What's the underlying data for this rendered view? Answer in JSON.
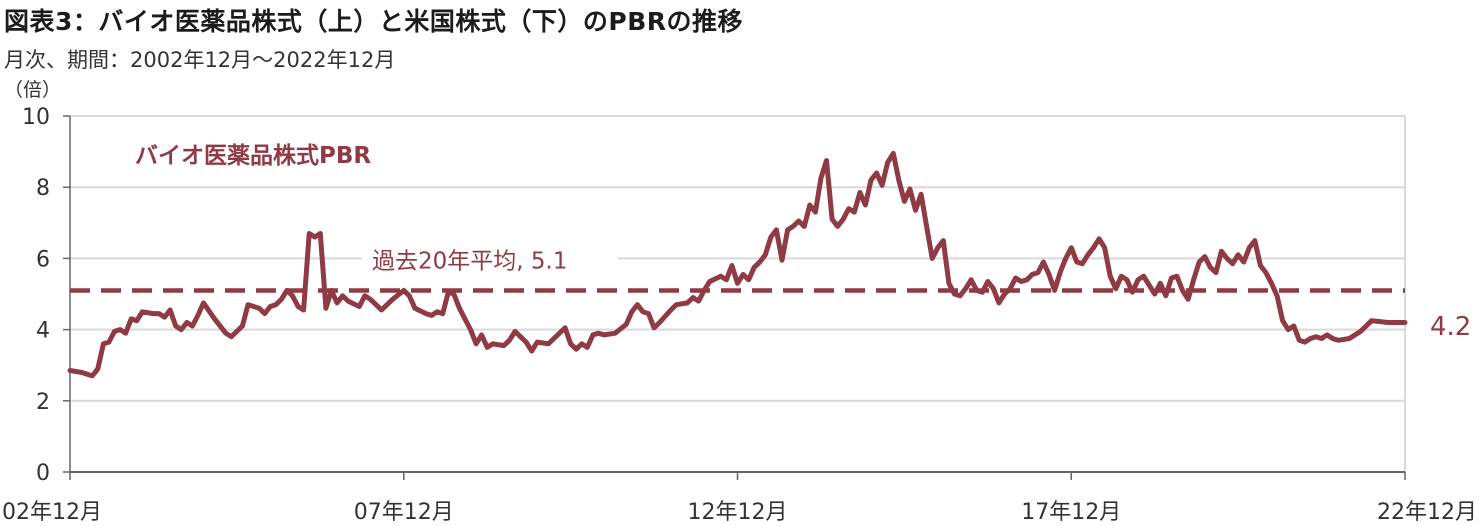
{
  "title": "図表3：バイオ医薬品株式（上）と米国株式（下）のPBRの推移",
  "subtitle": "月次、期間：2002年12月～2022年12月",
  "chart_data": {
    "type": "line",
    "y_unit": "（倍）",
    "ylim": [
      0,
      10
    ],
    "y_ticks": [
      "0",
      "2",
      "4",
      "6",
      "8",
      "10"
    ],
    "x_range": [
      "2002-12",
      "2022-12"
    ],
    "x_tick_labels": [
      "02年12月",
      "07年12月",
      "12年12月",
      "17年12月",
      "22年12月"
    ],
    "grid": true,
    "series": [
      {
        "name": "バイオ医薬品株式PBR",
        "color": "#8f3a44",
        "points": [
          [
            "2002-12",
            2.85
          ],
          [
            "2003-02",
            2.8
          ],
          [
            "2003-04",
            2.7
          ],
          [
            "2003-05",
            2.9
          ],
          [
            "2003-06",
            3.6
          ],
          [
            "2003-07",
            3.65
          ],
          [
            "2003-08",
            3.95
          ],
          [
            "2003-09",
            4.0
          ],
          [
            "2003-10",
            3.9
          ],
          [
            "2003-11",
            4.3
          ],
          [
            "2003-12",
            4.25
          ],
          [
            "2004-01",
            4.5
          ],
          [
            "2004-03",
            4.45
          ],
          [
            "2004-04",
            4.45
          ],
          [
            "2004-05",
            4.35
          ],
          [
            "2004-06",
            4.55
          ],
          [
            "2004-07",
            4.1
          ],
          [
            "2004-08",
            4.0
          ],
          [
            "2004-09",
            4.2
          ],
          [
            "2004-10",
            4.1
          ],
          [
            "2004-11",
            4.4
          ],
          [
            "2004-12",
            4.75
          ],
          [
            "2005-02",
            4.3
          ],
          [
            "2005-04",
            3.9
          ],
          [
            "2005-05",
            3.8
          ],
          [
            "2005-07",
            4.1
          ],
          [
            "2005-08",
            4.7
          ],
          [
            "2005-10",
            4.6
          ],
          [
            "2005-11",
            4.45
          ],
          [
            "2005-12",
            4.65
          ],
          [
            "2006-01",
            4.7
          ],
          [
            "2006-02",
            4.85
          ],
          [
            "2006-03",
            5.1
          ],
          [
            "2006-04",
            4.95
          ],
          [
            "2006-05",
            4.65
          ],
          [
            "2006-06",
            4.55
          ],
          [
            "2006-07",
            6.7
          ],
          [
            "2006-08",
            6.6
          ],
          [
            "2006-09",
            6.7
          ],
          [
            "2006-10",
            4.6
          ],
          [
            "2006-11",
            5.1
          ],
          [
            "2006-12",
            4.75
          ],
          [
            "2007-01",
            4.95
          ],
          [
            "2007-02",
            4.8
          ],
          [
            "2007-04",
            4.65
          ],
          [
            "2007-05",
            4.95
          ],
          [
            "2007-06",
            4.85
          ],
          [
            "2007-08",
            4.55
          ],
          [
            "2007-10",
            4.85
          ],
          [
            "2007-12",
            5.1
          ],
          [
            "2008-01",
            4.95
          ],
          [
            "2008-02",
            4.6
          ],
          [
            "2008-04",
            4.45
          ],
          [
            "2008-05",
            4.4
          ],
          [
            "2008-06",
            4.5
          ],
          [
            "2008-07",
            4.45
          ],
          [
            "2008-08",
            5.05
          ],
          [
            "2008-09",
            5.0
          ],
          [
            "2008-10",
            4.6
          ],
          [
            "2008-11",
            4.3
          ],
          [
            "2008-12",
            4.0
          ],
          [
            "2009-01",
            3.6
          ],
          [
            "2009-02",
            3.85
          ],
          [
            "2009-03",
            3.5
          ],
          [
            "2009-04",
            3.6
          ],
          [
            "2009-06",
            3.55
          ],
          [
            "2009-07",
            3.7
          ],
          [
            "2009-08",
            3.95
          ],
          [
            "2009-10",
            3.65
          ],
          [
            "2009-11",
            3.4
          ],
          [
            "2009-12",
            3.65
          ],
          [
            "2010-02",
            3.6
          ],
          [
            "2010-03",
            3.75
          ],
          [
            "2010-05",
            4.05
          ],
          [
            "2010-06",
            3.6
          ],
          [
            "2010-07",
            3.45
          ],
          [
            "2010-08",
            3.6
          ],
          [
            "2010-09",
            3.5
          ],
          [
            "2010-10",
            3.85
          ],
          [
            "2010-11",
            3.9
          ],
          [
            "2010-12",
            3.85
          ],
          [
            "2011-02",
            3.9
          ],
          [
            "2011-04",
            4.15
          ],
          [
            "2011-05",
            4.5
          ],
          [
            "2011-06",
            4.7
          ],
          [
            "2011-07",
            4.5
          ],
          [
            "2011-08",
            4.45
          ],
          [
            "2011-09",
            4.05
          ],
          [
            "2011-10",
            4.2
          ],
          [
            "2011-12",
            4.55
          ],
          [
            "2012-01",
            4.7
          ],
          [
            "2012-03",
            4.75
          ],
          [
            "2012-04",
            4.9
          ],
          [
            "2012-05",
            4.8
          ],
          [
            "2012-06",
            5.1
          ],
          [
            "2012-07",
            5.35
          ],
          [
            "2012-09",
            5.5
          ],
          [
            "2012-10",
            5.4
          ],
          [
            "2012-11",
            5.8
          ],
          [
            "2012-12",
            5.3
          ],
          [
            "2013-01",
            5.55
          ],
          [
            "2013-02",
            5.4
          ],
          [
            "2013-03",
            5.75
          ],
          [
            "2013-04",
            5.9
          ],
          [
            "2013-05",
            6.1
          ],
          [
            "2013-06",
            6.6
          ],
          [
            "2013-07",
            6.8
          ],
          [
            "2013-08",
            5.95
          ],
          [
            "2013-09",
            6.8
          ],
          [
            "2013-10",
            6.9
          ],
          [
            "2013-11",
            7.05
          ],
          [
            "2013-12",
            6.9
          ],
          [
            "2014-01",
            7.5
          ],
          [
            "2014-02",
            7.3
          ],
          [
            "2014-03",
            8.25
          ],
          [
            "2014-04",
            8.75
          ],
          [
            "2014-05",
            7.1
          ],
          [
            "2014-06",
            6.9
          ],
          [
            "2014-07",
            7.1
          ],
          [
            "2014-08",
            7.4
          ],
          [
            "2014-09",
            7.3
          ],
          [
            "2014-10",
            7.85
          ],
          [
            "2014-11",
            7.5
          ],
          [
            "2014-12",
            8.2
          ],
          [
            "2015-01",
            8.4
          ],
          [
            "2015-02",
            8.05
          ],
          [
            "2015-03",
            8.7
          ],
          [
            "2015-04",
            8.95
          ],
          [
            "2015-05",
            8.2
          ],
          [
            "2015-06",
            7.6
          ],
          [
            "2015-07",
            7.95
          ],
          [
            "2015-08",
            7.35
          ],
          [
            "2015-09",
            7.8
          ],
          [
            "2015-10",
            6.9
          ],
          [
            "2015-11",
            6.0
          ],
          [
            "2015-12",
            6.3
          ],
          [
            "2016-01",
            6.5
          ],
          [
            "2016-02",
            5.3
          ],
          [
            "2016-03",
            5.0
          ],
          [
            "2016-04",
            4.95
          ],
          [
            "2016-05",
            5.15
          ],
          [
            "2016-06",
            5.4
          ],
          [
            "2016-07",
            5.1
          ],
          [
            "2016-08",
            5.05
          ],
          [
            "2016-09",
            5.35
          ],
          [
            "2016-10",
            5.15
          ],
          [
            "2016-11",
            4.75
          ],
          [
            "2016-12",
            5.0
          ],
          [
            "2017-01",
            5.15
          ],
          [
            "2017-02",
            5.45
          ],
          [
            "2017-03",
            5.35
          ],
          [
            "2017-04",
            5.4
          ],
          [
            "2017-05",
            5.55
          ],
          [
            "2017-06",
            5.6
          ],
          [
            "2017-07",
            5.9
          ],
          [
            "2017-08",
            5.55
          ],
          [
            "2017-09",
            5.1
          ],
          [
            "2017-10",
            5.6
          ],
          [
            "2017-11",
            6.0
          ],
          [
            "2017-12",
            6.3
          ],
          [
            "2018-01",
            5.9
          ],
          [
            "2018-02",
            5.85
          ],
          [
            "2018-03",
            6.1
          ],
          [
            "2018-04",
            6.3
          ],
          [
            "2018-05",
            6.55
          ],
          [
            "2018-06",
            6.3
          ],
          [
            "2018-07",
            5.5
          ],
          [
            "2018-08",
            5.15
          ],
          [
            "2018-09",
            5.5
          ],
          [
            "2018-10",
            5.4
          ],
          [
            "2018-11",
            5.05
          ],
          [
            "2018-12",
            5.4
          ],
          [
            "2019-01",
            5.5
          ],
          [
            "2019-02",
            5.25
          ],
          [
            "2019-03",
            5.0
          ],
          [
            "2019-04",
            5.3
          ],
          [
            "2019-05",
            4.95
          ],
          [
            "2019-06",
            5.45
          ],
          [
            "2019-07",
            5.5
          ],
          [
            "2019-08",
            5.1
          ],
          [
            "2019-09",
            4.85
          ],
          [
            "2019-10",
            5.4
          ],
          [
            "2019-11",
            5.9
          ],
          [
            "2019-12",
            6.05
          ],
          [
            "2020-01",
            5.75
          ],
          [
            "2020-02",
            5.6
          ],
          [
            "2020-03",
            6.2
          ],
          [
            "2020-04",
            6.0
          ],
          [
            "2020-05",
            5.85
          ],
          [
            "2020-06",
            6.1
          ],
          [
            "2020-07",
            5.9
          ],
          [
            "2020-08",
            6.3
          ],
          [
            "2020-09",
            6.5
          ],
          [
            "2020-10",
            5.8
          ],
          [
            "2020-11",
            5.6
          ],
          [
            "2020-12",
            5.3
          ],
          [
            "2021-01",
            4.95
          ],
          [
            "2021-02",
            4.25
          ],
          [
            "2021-03",
            4.0
          ],
          [
            "2021-04",
            4.1
          ],
          [
            "2021-05",
            3.7
          ],
          [
            "2021-06",
            3.65
          ],
          [
            "2021-07",
            3.75
          ],
          [
            "2021-08",
            3.8
          ],
          [
            "2021-09",
            3.75
          ],
          [
            "2021-10",
            3.85
          ],
          [
            "2021-11",
            3.75
          ],
          [
            "2021-12",
            3.7
          ],
          [
            "2022-02",
            3.75
          ],
          [
            "2022-04",
            3.95
          ],
          [
            "2022-06",
            4.25
          ],
          [
            "2022-09",
            4.2
          ],
          [
            "2022-12",
            4.2
          ]
        ]
      }
    ],
    "reference_line": {
      "value": 5.1,
      "label": "過去20年平均, 5.1",
      "style": "dashed"
    },
    "end_label": "4.2"
  }
}
